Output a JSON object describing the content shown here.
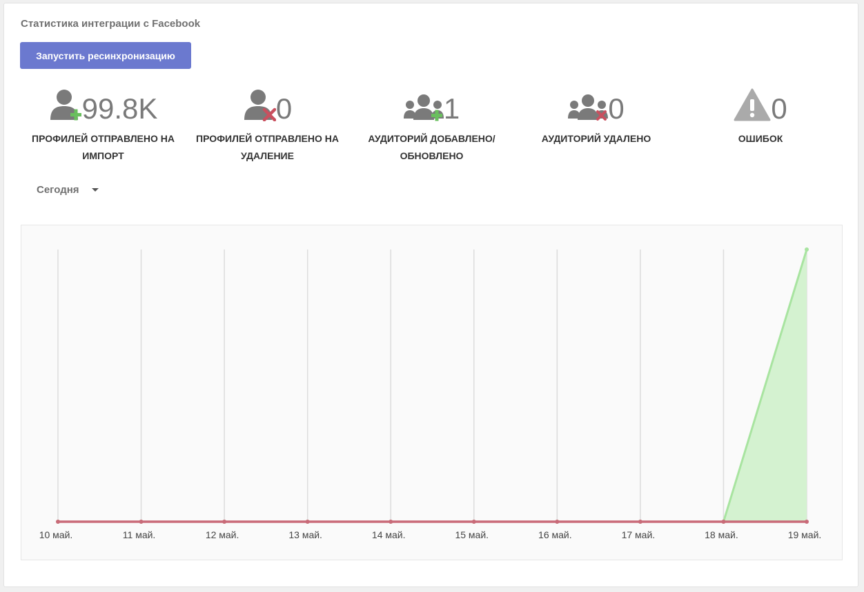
{
  "header": {
    "title": "Статистика интеграции с Facebook",
    "resync_button": "Запустить ресинхронизацию"
  },
  "stats": [
    {
      "value": "99.8K",
      "label_line1": "ПРОФИЛЕЙ ОТПРАВЛЕНО НА",
      "label_line2": "ИМПОРТ",
      "icon": "user-add-icon"
    },
    {
      "value": "0",
      "label_line1": "ПРОФИЛЕЙ ОТПРАВЛЕНО НА",
      "label_line2": "УДАЛЕНИЕ",
      "icon": "user-remove-icon"
    },
    {
      "value": "1",
      "label_line1": "АУДИТОРИЙ ДОБАВЛЕНО/",
      "label_line2": "ОБНОВЛЕНО",
      "icon": "audience-add-icon"
    },
    {
      "value": "0",
      "label_line1": "АУДИТОРИЙ УДАЛЕНО",
      "label_line2": "",
      "icon": "audience-remove-icon"
    },
    {
      "value": "0",
      "label_line1": "ОШИБОК",
      "label_line2": "",
      "icon": "warning-icon"
    }
  ],
  "period_selector": {
    "selected": "Сегодня"
  },
  "colors": {
    "accent": "#6b79cf",
    "icon_gray": "#7a7a7a",
    "plus_green": "#6abf5e",
    "cross_red": "#c9505f",
    "series_green": "#a8e4a0",
    "series_green_fill": "#d4f2d0",
    "series_red": "#c96a78"
  },
  "chart_data": {
    "type": "area",
    "categories": [
      "10 май.",
      "11 май.",
      "12 май.",
      "13 май.",
      "14 май.",
      "15 май.",
      "16 май.",
      "17 май.",
      "18 май.",
      "19 май."
    ],
    "series": [
      {
        "values": [
          0,
          0,
          0,
          0,
          0,
          0,
          0,
          0,
          0,
          1
        ],
        "color": "#a8e4a0"
      },
      {
        "values": [
          0,
          0,
          0,
          0,
          0,
          0,
          0,
          0,
          0,
          0
        ],
        "color": "#c96a78"
      }
    ],
    "ylim": [
      0,
      1
    ],
    "grid": "vertical",
    "xlabel": "",
    "ylabel": ""
  }
}
